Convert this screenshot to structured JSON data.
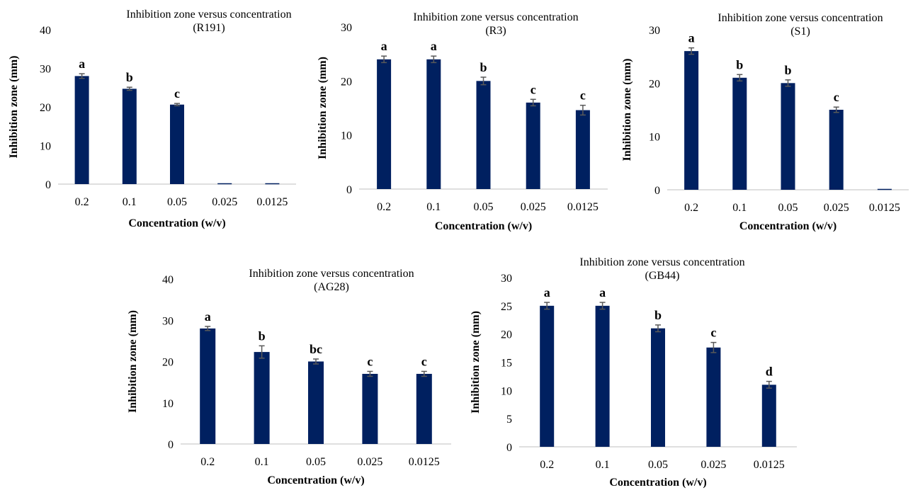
{
  "chart_data": [
    {
      "type": "bar",
      "title": "Inhibition zone versus concentration",
      "subtitle": "(R191)",
      "xlabel": "Concentration (w/v)",
      "ylabel": "Inhibition zone (mm)",
      "categories": [
        "0.2",
        "0.1",
        "0.05",
        "0.025",
        "0.0125"
      ],
      "values": [
        28,
        24.7,
        20.6,
        0,
        0
      ],
      "errors": [
        0.6,
        0.4,
        0.3,
        0,
        0
      ],
      "labels": [
        "a",
        "b",
        "c",
        "",
        ""
      ],
      "ylim": [
        0,
        40
      ],
      "yticks": [
        0,
        10,
        20,
        30,
        40
      ],
      "color": "#002060"
    },
    {
      "type": "bar",
      "title": "Inhibition zone versus concentration",
      "subtitle": "(R3)",
      "xlabel": "Concentration (w/v)",
      "ylabel": "Inhibition zone (mm)",
      "categories": [
        "0.2",
        "0.1",
        "0.05",
        "0.025",
        "0.0125"
      ],
      "values": [
        24,
        24,
        20,
        16,
        14.6
      ],
      "errors": [
        0.6,
        0.6,
        0.7,
        0.6,
        0.9
      ],
      "labels": [
        "a",
        "a",
        "b",
        "c",
        "c"
      ],
      "ylim": [
        0,
        30
      ],
      "yticks": [
        0,
        10,
        20,
        30
      ],
      "color": "#002060"
    },
    {
      "type": "bar",
      "title": "Inhibition zone versus concentration",
      "subtitle": "(S1)",
      "xlabel": "Concentration (w/v)",
      "ylabel": "Inhibition zone (mm)",
      "categories": [
        "0.2",
        "0.1",
        "0.05",
        "0.025",
        "0.0125"
      ],
      "values": [
        26,
        21,
        20,
        15,
        0
      ],
      "errors": [
        0.6,
        0.6,
        0.6,
        0.5,
        0
      ],
      "labels": [
        "a",
        "b",
        "b",
        "c",
        ""
      ],
      "ylim": [
        0,
        30
      ],
      "yticks": [
        0,
        10,
        20,
        30
      ],
      "color": "#002060"
    },
    {
      "type": "bar",
      "title": "Inhibition zone versus concentration",
      "subtitle": "(AG28)",
      "xlabel": "Concentration (w/v)",
      "ylabel": "Inhibition zone (mm)",
      "categories": [
        "0.2",
        "0.1",
        "0.05",
        "0.025",
        "0.0125"
      ],
      "values": [
        28,
        22.3,
        20,
        17,
        17
      ],
      "errors": [
        0.5,
        1.5,
        0.6,
        0.6,
        0.6
      ],
      "labels": [
        "a",
        "b",
        "bc",
        "c",
        "c"
      ],
      "ylim": [
        0,
        40
      ],
      "yticks": [
        0,
        10,
        20,
        30,
        40
      ],
      "color": "#002060"
    },
    {
      "type": "bar",
      "title": "Inhibition zone versus concentration",
      "subtitle": "(GB44)",
      "xlabel": "Concentration (w/v)",
      "ylabel": "Inhibition zone (mm)",
      "categories": [
        "0.2",
        "0.1",
        "0.05",
        "0.025",
        "0.0125"
      ],
      "values": [
        25,
        25,
        21,
        17.6,
        11
      ],
      "errors": [
        0.6,
        0.6,
        0.6,
        0.9,
        0.6
      ],
      "labels": [
        "a",
        "a",
        "b",
        "c",
        "d"
      ],
      "ylim": [
        0,
        30
      ],
      "yticks": [
        0,
        5,
        10,
        15,
        20,
        25,
        30
      ],
      "color": "#002060"
    }
  ]
}
